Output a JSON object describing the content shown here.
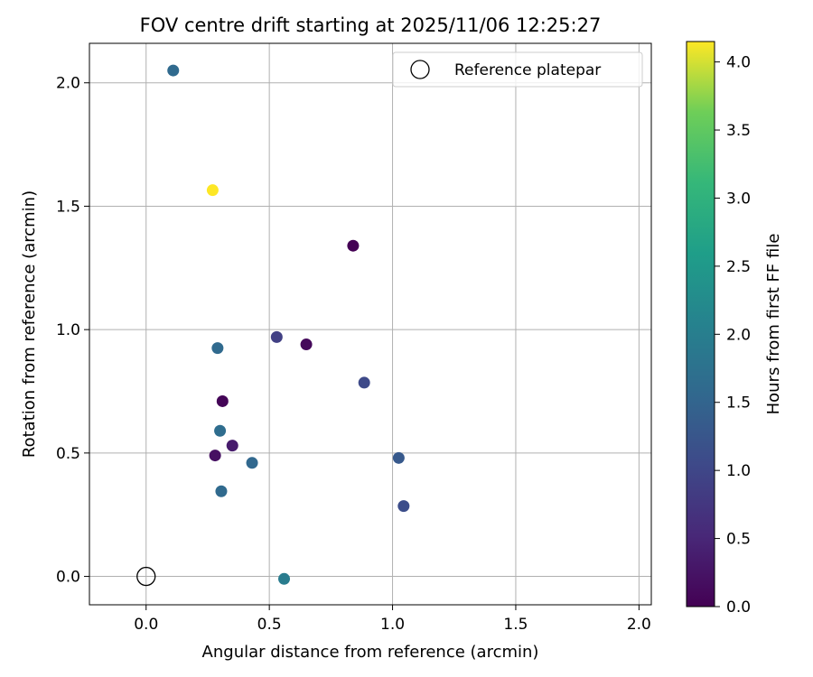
{
  "chart_data": {
    "type": "scatter",
    "title": "FOV centre drift starting at 2025/11/06 12:25:27",
    "xlabel": "Angular distance from reference (arcmin)",
    "ylabel": "Rotation from reference (arcmin)",
    "xlim": [
      -0.23,
      2.05
    ],
    "ylim": [
      -0.115,
      2.16
    ],
    "xticks": [
      0.0,
      0.5,
      1.0,
      1.5,
      2.0
    ],
    "yticks": [
      0.0,
      0.5,
      1.0,
      1.5,
      2.0
    ],
    "xtick_labels": [
      "0.0",
      "0.5",
      "1.0",
      "1.5",
      "2.0"
    ],
    "ytick_labels": [
      "0.0",
      "0.5",
      "1.0",
      "1.5",
      "2.0"
    ],
    "grid": true,
    "legend": {
      "position": "top-right",
      "entries": [
        "Reference platepar"
      ]
    },
    "reference_point": {
      "x": 0.0,
      "y": 0.0,
      "label": "Reference platepar"
    },
    "colorbar": {
      "label": "Hours from first FF file",
      "range": [
        0.0,
        4.15
      ],
      "ticks": [
        0.0,
        0.5,
        1.0,
        1.5,
        2.0,
        2.5,
        3.0,
        3.5,
        4.0
      ],
      "tick_labels": [
        "0.0",
        "0.5",
        "1.0",
        "1.5",
        "2.0",
        "2.5",
        "3.0",
        "3.5",
        "4.0"
      ],
      "colormap": "viridis"
    },
    "points": [
      {
        "x": 0.84,
        "y": 1.34,
        "hours": 0.0
      },
      {
        "x": 0.31,
        "y": 0.71,
        "hours": 0.05
      },
      {
        "x": 0.28,
        "y": 0.49,
        "hours": 0.2
      },
      {
        "x": 0.65,
        "y": 0.94,
        "hours": 0.1
      },
      {
        "x": 0.35,
        "y": 0.53,
        "hours": 0.35
      },
      {
        "x": 0.53,
        "y": 0.97,
        "hours": 0.9
      },
      {
        "x": 0.885,
        "y": 0.785,
        "hours": 1.05
      },
      {
        "x": 1.045,
        "y": 0.285,
        "hours": 1.1
      },
      {
        "x": 1.025,
        "y": 0.48,
        "hours": 1.3
      },
      {
        "x": 0.11,
        "y": 2.05,
        "hours": 1.6
      },
      {
        "x": 0.29,
        "y": 0.925,
        "hours": 1.6
      },
      {
        "x": 0.3,
        "y": 0.59,
        "hours": 1.65
      },
      {
        "x": 0.43,
        "y": 0.46,
        "hours": 1.55
      },
      {
        "x": 0.305,
        "y": 0.345,
        "hours": 1.6
      },
      {
        "x": 0.56,
        "y": -0.01,
        "hours": 1.95
      },
      {
        "x": 0.27,
        "y": 1.565,
        "hours": 4.15
      }
    ]
  }
}
